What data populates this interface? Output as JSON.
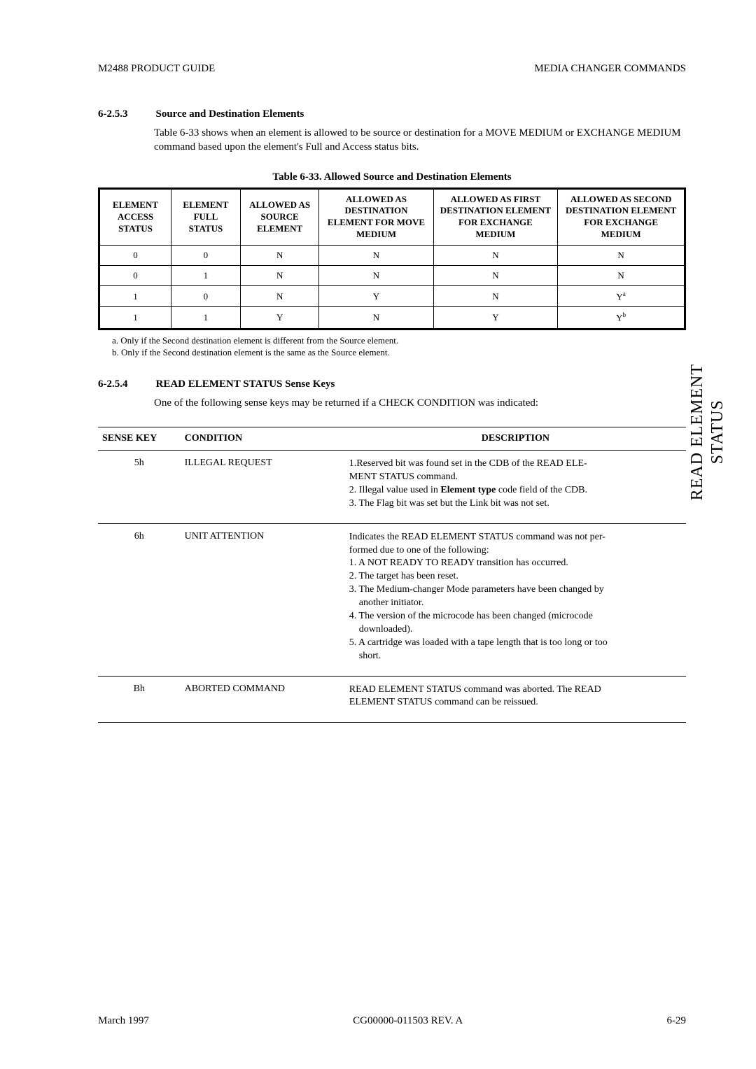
{
  "header": {
    "left": "M2488 PRODUCT GUIDE",
    "right": "MEDIA CHANGER COMMANDS"
  },
  "section1": {
    "num": "6-2.5.3",
    "title": "Source and Destination Elements",
    "para": "Table 6-33 shows when an element is allowed to be source or destination for a MOVE MEDIUM or EXCHANGE MEDIUM command based upon the element's Full and Access status bits."
  },
  "table33": {
    "caption": "Table 6-33.   Allowed Source and Destination Elements",
    "headers": [
      "ELEMENT ACCESS STATUS",
      "ELEMENT FULL STATUS",
      "ALLOWED AS SOURCE ELEMENT",
      "ALLOWED AS DESTINATION ELEMENT FOR MOVE MEDIUM",
      "ALLOWED AS FIRST DESTINATION ELEMENT FOR EXCHANGE MEDIUM",
      "ALLOWED AS SECOND DESTINATION ELEMENT FOR EXCHANGE MEDIUM"
    ],
    "rows": [
      [
        "0",
        "0",
        "N",
        "N",
        "N",
        "N"
      ],
      [
        "0",
        "1",
        "N",
        "N",
        "N",
        "N"
      ],
      [
        "1",
        "0",
        "N",
        "Y",
        "N",
        "Y",
        "a"
      ],
      [
        "1",
        "1",
        "Y",
        "N",
        "Y",
        "Y",
        "b"
      ]
    ],
    "footnote_a": "a.  Only if the Second destination element is different from the Source element.",
    "footnote_b": "b.  Only if the Second destination element is the same as the Source element."
  },
  "section2": {
    "num": "6-2.5.4",
    "title": "READ ELEMENT STATUS Sense Keys",
    "para": "One of the following sense keys may be returned if a CHECK CONDITION was indicated:"
  },
  "sense": {
    "head_key": "SENSE KEY",
    "head_cond": "CONDITION",
    "head_desc": "DESCRIPTION",
    "rows": [
      {
        "key": "5h",
        "cond": "ILLEGAL REQUEST",
        "desc_lines": [
          "1.Reserved bit was found set in the CDB of the READ ELE-",
          "MENT STATUS command.",
          "2. Illegal value used in ",
          " code field of the CDB.",
          "3. The Flag bit was set but the Link bit was not set."
        ],
        "bold_inline": "Element type"
      },
      {
        "key": "6h",
        "cond": "UNIT ATTENTION",
        "desc_lines": [
          "Indicates the READ ELEMENT STATUS command was not per-",
          "formed due to one of the following:",
          "1. A NOT READY TO READY transition has occurred.",
          "2. The target has been reset.",
          "3. The Medium-changer Mode parameters have been changed by",
          "another initiator.",
          "4. The version of the microcode has been changed (microcode",
          "downloaded).",
          "5. A cartridge was loaded with a tape length that is too long or too",
          "short."
        ]
      },
      {
        "key": "Bh",
        "cond": "ABORTED COMMAND",
        "desc_lines": [
          "READ ELEMENT STATUS command was aborted. The READ",
          "ELEMENT STATUS command can be reissued."
        ]
      }
    ]
  },
  "side_tab": {
    "line1": "READ ELEMENT",
    "line2": "STATUS"
  },
  "footer": {
    "left": "March 1997",
    "center": "CG00000-011503 REV. A",
    "right": "6-29"
  }
}
